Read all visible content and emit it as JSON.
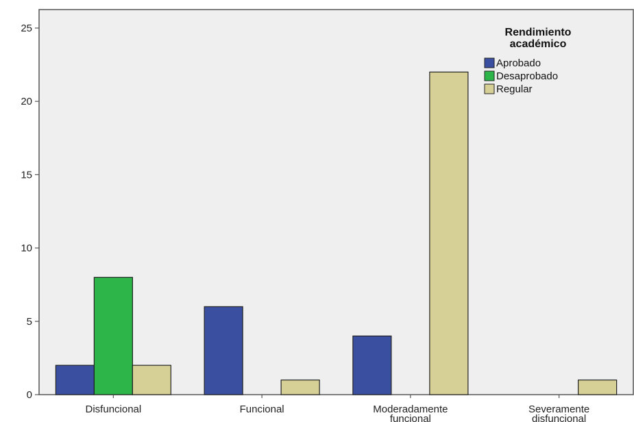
{
  "chart_data": {
    "type": "bar",
    "title": "",
    "xlabel": "",
    "ylabel": "",
    "ylim": [
      0,
      25
    ],
    "yticks": [
      0,
      5,
      10,
      15,
      20,
      25
    ],
    "categories": [
      [
        "Disfuncional"
      ],
      [
        "Funcional"
      ],
      [
        "Moderadamente",
        "funcional"
      ],
      [
        "Severamente",
        "disfuncional"
      ]
    ],
    "series": [
      {
        "name": "Aprobado",
        "color": "#3a4fa0",
        "values": [
          2,
          6,
          4,
          0
        ]
      },
      {
        "name": "Desaprobado",
        "color": "#2db54a",
        "values": [
          8,
          0,
          0,
          0
        ]
      },
      {
        "name": "Regular",
        "color": "#d6cf96",
        "values": [
          2,
          1,
          22,
          1
        ]
      }
    ],
    "legend": {
      "title": [
        "Rendimiento",
        "académico"
      ],
      "position": "top-right"
    },
    "grid": false,
    "plot_background": "#efefef"
  }
}
